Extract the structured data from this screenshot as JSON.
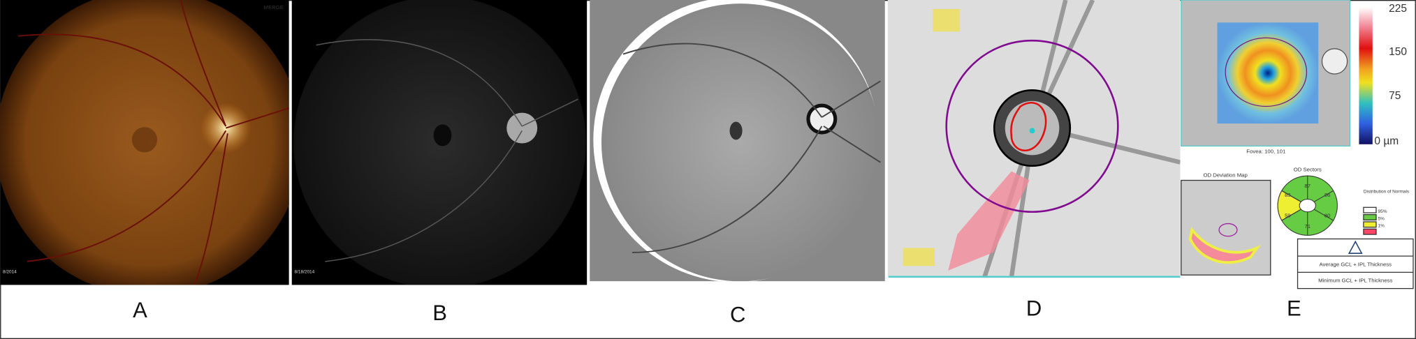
{
  "panels": [
    {
      "label": "A",
      "stamp": "MERGE",
      "date": "8/2014"
    },
    {
      "label": "B",
      "date": "8/18/2014"
    },
    {
      "label": "C"
    },
    {
      "label": "D"
    },
    {
      "label": "E",
      "fovea": "Fovea: 100, 101",
      "colorbar": [
        "225",
        "150",
        "75",
        "0 µm"
      ],
      "deviation_title": "OD Deviation Map",
      "sectors_title": "OD Sectors",
      "sectors": [
        "87",
        "86",
        "80",
        "71",
        "59",
        "83"
      ],
      "legend_title": "Distribution of Normals",
      "legend": [
        "95%",
        "5%",
        "1%"
      ],
      "rows": [
        "Average GCL + IPL Thickness",
        "Minimum GCL + IPL Thickness"
      ]
    }
  ]
}
